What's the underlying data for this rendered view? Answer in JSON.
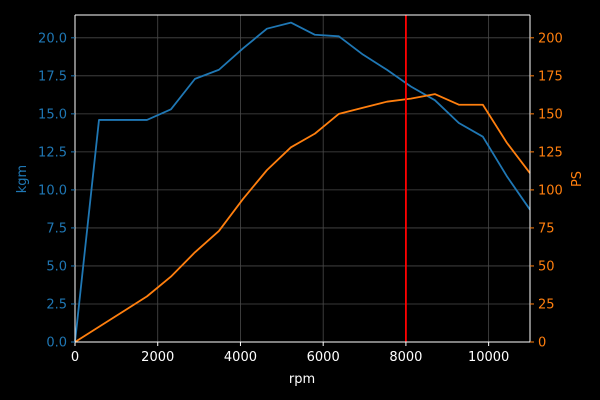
{
  "colors": {
    "background": "#000000",
    "axis": "#ffffff",
    "grid": "#4a4a4a",
    "torque": "#1f77b4",
    "power": "#ff7f0e",
    "marker": "#ff0000"
  },
  "chart_data": {
    "type": "line",
    "title": "",
    "xlabel": "rpm",
    "ylabel": "kgm",
    "y2label": "PS",
    "xlim": [
      0,
      11000
    ],
    "ylim": [
      0,
      21.5
    ],
    "y2lim": [
      0,
      215
    ],
    "grid": true,
    "x_ticks": [
      0,
      2000,
      4000,
      6000,
      8000,
      10000
    ],
    "x_tick_labels": [
      "0",
      "2000",
      "4000",
      "6000",
      "8000",
      "10000"
    ],
    "y_ticks": [
      0,
      2.5,
      5,
      7.5,
      10,
      12.5,
      15,
      17.5,
      20
    ],
    "y_tick_labels": [
      "0.0",
      "2.5",
      "5.0",
      "7.5",
      "10.0",
      "12.5",
      "15.0",
      "17.5",
      "20.0"
    ],
    "y2_ticks": [
      0,
      25,
      50,
      75,
      100,
      125,
      150,
      175,
      200
    ],
    "y2_tick_labels": [
      "0",
      "25",
      "50",
      "75",
      "100",
      "125",
      "150",
      "175",
      "200"
    ],
    "vline": 8000,
    "series": [
      {
        "axis": "left",
        "color": "#1f77b4",
        "points": [
          [
            0,
            0
          ],
          [
            580,
            14.6
          ],
          [
            1740,
            14.6
          ],
          [
            2320,
            15.3
          ],
          [
            2900,
            17.3
          ],
          [
            3480,
            17.9
          ],
          [
            4060,
            19.3
          ],
          [
            4640,
            20.6
          ],
          [
            5220,
            21.0
          ],
          [
            5800,
            20.2
          ],
          [
            6380,
            20.1
          ],
          [
            6960,
            18.9
          ],
          [
            7540,
            17.9
          ],
          [
            8120,
            16.8
          ],
          [
            8700,
            15.9
          ],
          [
            9280,
            14.4
          ],
          [
            9860,
            13.5
          ],
          [
            10440,
            10.9
          ],
          [
            11000,
            8.7
          ]
        ]
      },
      {
        "axis": "right",
        "color": "#ff7f0e",
        "points": [
          [
            0,
            0
          ],
          [
            1740,
            30
          ],
          [
            2320,
            43
          ],
          [
            2900,
            59
          ],
          [
            3480,
            73
          ],
          [
            4060,
            94
          ],
          [
            4640,
            113
          ],
          [
            5220,
            128
          ],
          [
            5800,
            137
          ],
          [
            6380,
            150
          ],
          [
            6960,
            154
          ],
          [
            7540,
            158
          ],
          [
            8120,
            160
          ],
          [
            8700,
            163
          ],
          [
            9280,
            156
          ],
          [
            9860,
            156
          ],
          [
            10440,
            131
          ],
          [
            11000,
            111
          ]
        ]
      }
    ]
  }
}
